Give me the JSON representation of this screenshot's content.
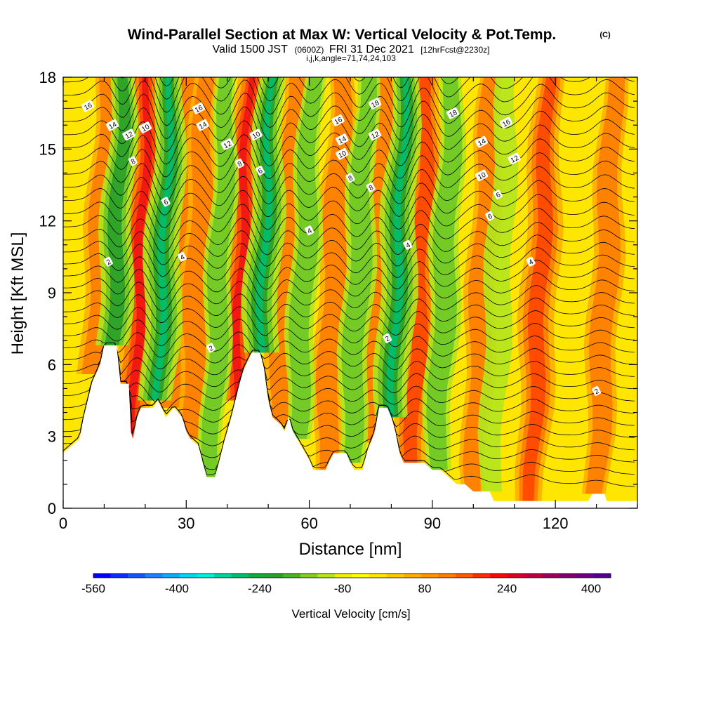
{
  "header": {
    "title": "Wind-Parallel Section at Max W: Vertical Velocity & Pot.Temp.",
    "copyright": "(C)",
    "valid_prefix": "Valid 1500 JST",
    "valid_utc": "(0600Z)",
    "valid_date": "FRI 31 Dec 2021",
    "forecast": "[12hrFcst@2230z]",
    "grid_info": "i,j,k,angle=71,74,24,103"
  },
  "chart_data": {
    "type": "heatmap",
    "xlabel": "Distance [nm]",
    "ylabel": "Height [Kft MSL]",
    "xlim": [
      0,
      140
    ],
    "ylim": [
      0,
      18
    ],
    "x_ticks": [
      "0",
      "30",
      "60",
      "90",
      "120"
    ],
    "x_tick_values": [
      0,
      30,
      60,
      90,
      120
    ],
    "y_ticks": [
      "0",
      "3",
      "6",
      "9",
      "12",
      "15",
      "18"
    ],
    "y_tick_values": [
      0,
      3,
      6,
      9,
      12,
      15,
      18
    ],
    "fill_variable": "Vertical Velocity",
    "contour_variable": "Potential Temperature",
    "terrain_profile": [
      [
        0,
        2.3
      ],
      [
        2,
        2.6
      ],
      [
        4,
        2.9
      ],
      [
        5,
        3.8
      ],
      [
        6,
        4.5
      ],
      [
        7,
        5.2
      ],
      [
        9,
        6.0
      ],
      [
        10,
        6.8
      ],
      [
        13,
        6.8
      ],
      [
        13.5,
        6.0
      ],
      [
        14,
        5.2
      ],
      [
        16,
        5.2
      ],
      [
        16.5,
        3.2
      ],
      [
        17,
        2.9
      ],
      [
        18,
        3.8
      ],
      [
        19,
        4.2
      ],
      [
        22,
        4.2
      ],
      [
        23,
        4.5
      ],
      [
        24,
        4.2
      ],
      [
        25,
        3.8
      ],
      [
        27,
        4.2
      ],
      [
        29,
        3.8
      ],
      [
        30,
        3.2
      ],
      [
        31,
        2.9
      ],
      [
        33,
        2.6
      ],
      [
        34,
        1.9
      ],
      [
        35,
        1.3
      ],
      [
        37,
        1.3
      ],
      [
        38,
        1.9
      ],
      [
        39,
        2.6
      ],
      [
        40,
        3.2
      ],
      [
        41,
        3.8
      ],
      [
        42,
        4.5
      ],
      [
        43,
        5.2
      ],
      [
        44,
        5.8
      ],
      [
        46,
        6.5
      ],
      [
        48,
        6.5
      ],
      [
        49,
        5.8
      ],
      [
        50,
        4.5
      ],
      [
        51,
        3.8
      ],
      [
        53,
        3.5
      ],
      [
        54,
        3.2
      ],
      [
        55,
        3.8
      ],
      [
        56,
        3.2
      ],
      [
        58,
        2.6
      ],
      [
        59,
        2.3
      ],
      [
        60,
        2.0
      ],
      [
        61,
        1.6
      ],
      [
        64,
        1.6
      ],
      [
        65,
        2.0
      ],
      [
        66,
        2.3
      ],
      [
        69,
        2.3
      ],
      [
        70,
        1.9
      ],
      [
        71,
        1.6
      ],
      [
        73,
        1.6
      ],
      [
        74,
        2.3
      ],
      [
        76,
        3.2
      ],
      [
        77,
        4.2
      ],
      [
        79,
        4.2
      ],
      [
        80,
        3.8
      ],
      [
        81,
        3.2
      ],
      [
        82,
        2.3
      ],
      [
        83,
        1.9
      ],
      [
        86,
        1.9
      ],
      [
        88,
        1.9
      ],
      [
        90,
        1.6
      ],
      [
        92,
        1.6
      ],
      [
        94,
        1.3
      ],
      [
        96,
        1.0
      ],
      [
        98,
        1.0
      ],
      [
        100,
        0.7
      ],
      [
        104,
        0.7
      ],
      [
        105,
        0.3
      ],
      [
        128,
        0.3
      ],
      [
        129,
        0.6
      ],
      [
        132,
        0.6
      ],
      [
        132.5,
        0.3
      ],
      [
        140,
        0.3
      ]
    ],
    "updraft_bands": [
      {
        "x": 8,
        "strength": 0.55
      },
      {
        "x": 17,
        "strength": 0.95
      },
      {
        "x": 27,
        "strength": 0.6
      },
      {
        "x": 31,
        "strength": 0.45
      },
      {
        "x": 42,
        "strength": 0.9
      },
      {
        "x": 53,
        "strength": 0.6
      },
      {
        "x": 64,
        "strength": 0.5
      },
      {
        "x": 75,
        "strength": 0.55
      },
      {
        "x": 85,
        "strength": 0.75
      },
      {
        "x": 100,
        "strength": 0.4
      },
      {
        "x": 114,
        "strength": 0.7
      },
      {
        "x": 130,
        "strength": 0.45
      }
    ],
    "downdraft_bands": [
      {
        "x": 12,
        "strength": 0.75
      },
      {
        "x": 23,
        "strength": 0.95
      },
      {
        "x": 36,
        "strength": 0.4
      },
      {
        "x": 48,
        "strength": 0.9
      },
      {
        "x": 57,
        "strength": 0.5
      },
      {
        "x": 70,
        "strength": 0.6
      },
      {
        "x": 80,
        "strength": 0.95
      },
      {
        "x": 91,
        "strength": 0.6
      },
      {
        "x": 104,
        "strength": 0.35
      }
    ],
    "contour_labels": [
      {
        "text": "16",
        "x": 6,
        "y": 16.8
      },
      {
        "text": "14",
        "x": 12,
        "y": 16.0
      },
      {
        "text": "12",
        "x": 16,
        "y": 15.6
      },
      {
        "text": "10",
        "x": 20,
        "y": 15.9
      },
      {
        "text": "8",
        "x": 17,
        "y": 14.5
      },
      {
        "text": "6",
        "x": 25,
        "y": 12.8
      },
      {
        "text": "2",
        "x": 11,
        "y": 10.3
      },
      {
        "text": "4",
        "x": 29,
        "y": 10.5
      },
      {
        "text": "16",
        "x": 33,
        "y": 16.7
      },
      {
        "text": "14",
        "x": 34,
        "y": 16.0
      },
      {
        "text": "12",
        "x": 40,
        "y": 15.2
      },
      {
        "text": "8",
        "x": 43,
        "y": 14.4
      },
      {
        "text": "10",
        "x": 47,
        "y": 15.6
      },
      {
        "text": "6",
        "x": 48,
        "y": 14.1
      },
      {
        "text": "2",
        "x": 36,
        "y": 6.7
      },
      {
        "text": "4",
        "x": 60,
        "y": 11.6
      },
      {
        "text": "16",
        "x": 67,
        "y": 16.2
      },
      {
        "text": "14",
        "x": 68,
        "y": 15.4
      },
      {
        "text": "10",
        "x": 68,
        "y": 14.8
      },
      {
        "text": "8",
        "x": 70,
        "y": 13.8
      },
      {
        "text": "18",
        "x": 76,
        "y": 16.9
      },
      {
        "text": "12",
        "x": 76,
        "y": 15.6
      },
      {
        "text": "8",
        "x": 75,
        "y": 13.4
      },
      {
        "text": "2",
        "x": 79,
        "y": 7.1
      },
      {
        "text": "4",
        "x": 84,
        "y": 11.0
      },
      {
        "text": "18",
        "x": 95,
        "y": 16.5
      },
      {
        "text": "16",
        "x": 108,
        "y": 16.1
      },
      {
        "text": "14",
        "x": 102,
        "y": 15.3
      },
      {
        "text": "12",
        "x": 110,
        "y": 14.6
      },
      {
        "text": "10",
        "x": 102,
        "y": 13.9
      },
      {
        "text": "6",
        "x": 106,
        "y": 13.1
      },
      {
        "text": "6",
        "x": 104,
        "y": 12.2
      },
      {
        "text": "4",
        "x": 114,
        "y": 10.3
      },
      {
        "text": "2",
        "x": 130,
        "y": 4.9
      }
    ],
    "colorbar": {
      "label": "Vertical Velocity [cm/s]",
      "tick_labels": [
        "-560",
        "-400",
        "-240",
        "-80",
        "80",
        "240",
        "400"
      ],
      "colors": [
        "#0000ff",
        "#0a2cff",
        "#1555ff",
        "#1e80ff",
        "#10aaf6",
        "#00d7f0",
        "#00f0e0",
        "#00d2a0",
        "#00be6e",
        "#14aa3c",
        "#28a02a",
        "#4ab428",
        "#82cd28",
        "#b4e61e",
        "#f0f000",
        "#ffff00",
        "#ffe600",
        "#ffc800",
        "#ffaf00",
        "#ff9600",
        "#ff7d00",
        "#ff5a00",
        "#ff2d00",
        "#f50a0a",
        "#dc0023",
        "#be0041",
        "#a0005a",
        "#82006e",
        "#6e0082",
        "#550090"
      ]
    }
  }
}
